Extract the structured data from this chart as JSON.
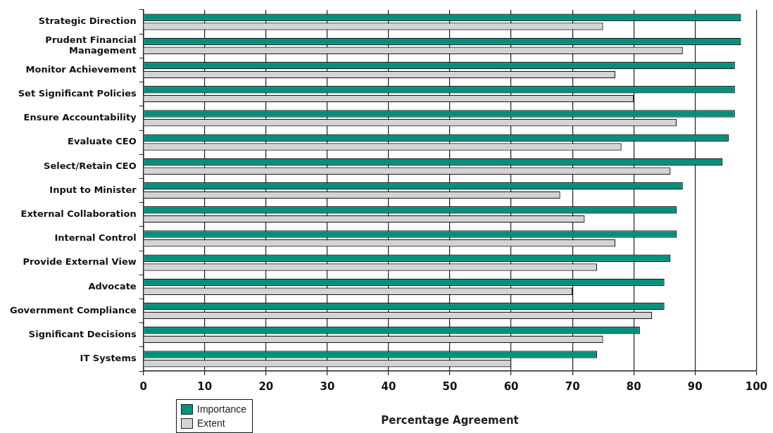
{
  "chart_data": {
    "type": "bar",
    "orientation": "horizontal",
    "xlabel": "Percentage Agreement",
    "categories": [
      "Strategic Direction",
      "Prudent Financial Management",
      "Monitor Achievement",
      "Set Significant Policies",
      "Ensure Accountability",
      "Evaluate CEO",
      "Select/Retain CEO",
      "Input to Minister",
      "External Collaboration",
      "Internal Control",
      "Provide External View",
      "Advocate",
      "Government Compliance",
      "Significant Decisions",
      "IT Systems"
    ],
    "series": [
      {
        "name": "Importance",
        "color": "#00917a",
        "values": [
          97.5,
          97.5,
          96.5,
          96.5,
          96.5,
          95.5,
          94.5,
          88,
          87,
          87,
          86,
          85,
          85,
          81,
          74
        ]
      },
      {
        "name": "Extent",
        "color": "#d4d4d6",
        "values": [
          75,
          88,
          77,
          80,
          87,
          78,
          86,
          68,
          72,
          77,
          74,
          70,
          83,
          75,
          60
        ]
      }
    ],
    "xlim": [
      0,
      100
    ],
    "xticks": [
      0,
      10,
      20,
      30,
      40,
      50,
      60,
      70,
      80,
      90,
      100
    ],
    "grid": "x",
    "legend": "bottom left"
  }
}
